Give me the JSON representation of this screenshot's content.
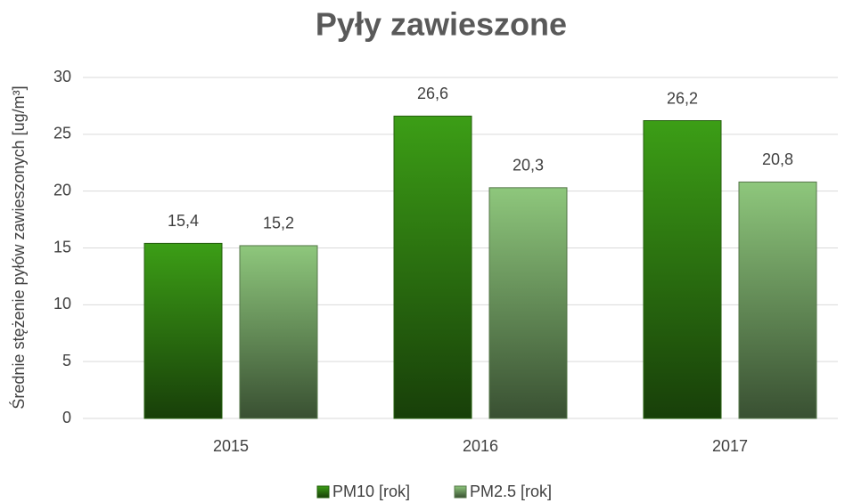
{
  "chart_data": {
    "type": "bar",
    "title": "Pyły zawieszone",
    "y_label": "Średnie stężenie pyłów zawieszonych [ug/m³]",
    "categories": [
      "2015",
      "2016",
      "2017"
    ],
    "series": [
      {
        "name": "PM10 [rok]",
        "color": "#3c9e16",
        "values": [
          15.4,
          26.6,
          26.2
        ],
        "value_labels": [
          "15,4",
          "26,6",
          "26,2"
        ]
      },
      {
        "name": "PM2.5 [rok]",
        "color": "#8ec77c",
        "values": [
          15.2,
          20.3,
          20.8
        ],
        "value_labels": [
          "15,2",
          "20,3",
          "20,8"
        ]
      }
    ],
    "ylim": [
      0,
      30
    ],
    "yticks": [
      0,
      5,
      10,
      15,
      20,
      25,
      30
    ],
    "grid": true,
    "legend": "bottom"
  }
}
